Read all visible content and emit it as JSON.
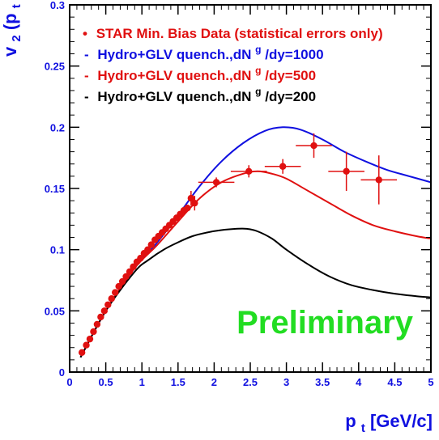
{
  "chart_data": {
    "type": "line",
    "title": "",
    "xlabel": {
      "main": "p",
      "sub": "t",
      "rest": " [GeV/c]"
    },
    "ylabel": {
      "main": "v",
      "sub": "2",
      "mid": "(p",
      "sub2": "t",
      "end": ")"
    },
    "xlim": [
      0,
      5
    ],
    "ylim": [
      0,
      0.3
    ],
    "x_ticks": [
      "0",
      "0.5",
      "1",
      "1.5",
      "2",
      "2.5",
      "3",
      "3.5",
      "4",
      "4.5",
      "5"
    ],
    "y_ticks": [
      "0",
      "0.05",
      "0.1",
      "0.15",
      "0.2",
      "0.25",
      "0.3"
    ],
    "watermark": "Preliminary",
    "colors": {
      "blue": "#1010e0",
      "red": "#e01010",
      "black": "#000000",
      "green": "#22dd22"
    },
    "legend": [
      {
        "marker": "•",
        "text": "STAR Min. Bias Data (statistical errors only)",
        "color": "#e01010"
      },
      {
        "marker": "-",
        "pre": "Hydro+GLV quench.,dN",
        "sup": "g",
        "post": "/dy=1000",
        "color": "#1010e0"
      },
      {
        "marker": "-",
        "pre": "Hydro+GLV quench.,dN",
        "sup": "g",
        "post": "/dy=500",
        "color": "#e01010"
      },
      {
        "marker": "-",
        "pre": "Hydro+GLV quench.,dN",
        "sup": "g",
        "post": "/dy=200",
        "color": "#000000"
      }
    ],
    "series": [
      {
        "name": "Hydro+GLV quench.,dN g/dy=1000",
        "color": "#1010e0",
        "x": [
          0.15,
          0.5,
          0.9,
          1.2,
          1.5,
          1.8,
          2.1,
          2.4,
          2.7,
          2.95,
          3.2,
          3.5,
          3.8,
          4.1,
          4.4,
          4.7,
          5.0
        ],
        "y": [
          0.012,
          0.05,
          0.085,
          0.105,
          0.128,
          0.152,
          0.172,
          0.187,
          0.197,
          0.2,
          0.198,
          0.19,
          0.18,
          0.172,
          0.165,
          0.16,
          0.155
        ]
      },
      {
        "name": "Hydro+GLV quench.,dN g/dy=500",
        "color": "#e01010",
        "x": [
          0.15,
          0.5,
          0.9,
          1.2,
          1.5,
          1.8,
          2.1,
          2.4,
          2.6,
          2.8,
          3.0,
          3.3,
          3.6,
          3.9,
          4.2,
          4.5,
          4.8,
          5.0
        ],
        "y": [
          0.012,
          0.05,
          0.085,
          0.103,
          0.123,
          0.142,
          0.155,
          0.162,
          0.164,
          0.162,
          0.158,
          0.148,
          0.138,
          0.128,
          0.12,
          0.115,
          0.111,
          0.109
        ]
      },
      {
        "name": "Hydro+GLV quench.,dN g/dy=200",
        "color": "#000000",
        "x": [
          0.15,
          0.5,
          0.9,
          1.1,
          1.3,
          1.5,
          1.7,
          1.9,
          2.1,
          2.3,
          2.45,
          2.6,
          2.8,
          3.0,
          3.3,
          3.6,
          3.9,
          4.2,
          4.5,
          4.8,
          5.0
        ],
        "y": [
          0.012,
          0.05,
          0.082,
          0.092,
          0.1,
          0.106,
          0.111,
          0.114,
          0.116,
          0.117,
          0.117,
          0.115,
          0.109,
          0.1,
          0.088,
          0.078,
          0.071,
          0.067,
          0.064,
          0.062,
          0.061
        ]
      }
    ],
    "data": {
      "name": "STAR Min. Bias Data (statistical errors only)",
      "color": "#e01010",
      "x": [
        0.17,
        0.23,
        0.28,
        0.33,
        0.38,
        0.43,
        0.48,
        0.53,
        0.58,
        0.63,
        0.68,
        0.73,
        0.78,
        0.83,
        0.88,
        0.93,
        0.98,
        1.03,
        1.08,
        1.13,
        1.18,
        1.23,
        1.28,
        1.33,
        1.38,
        1.43,
        1.48,
        1.53,
        1.58,
        1.63,
        1.68,
        1.73,
        2.03,
        2.48,
        2.95,
        3.38,
        3.83,
        4.28
      ],
      "y": [
        0.016,
        0.022,
        0.027,
        0.033,
        0.039,
        0.045,
        0.05,
        0.055,
        0.06,
        0.065,
        0.07,
        0.074,
        0.078,
        0.082,
        0.086,
        0.09,
        0.093,
        0.097,
        0.1,
        0.104,
        0.108,
        0.111,
        0.114,
        0.117,
        0.12,
        0.123,
        0.126,
        0.129,
        0.132,
        0.134,
        0.142,
        0.138,
        0.155,
        0.164,
        0.168,
        0.185,
        0.164,
        0.157
      ],
      "xerr": [
        0,
        0,
        0,
        0,
        0,
        0,
        0,
        0,
        0,
        0,
        0,
        0,
        0,
        0,
        0,
        0,
        0,
        0,
        0,
        0,
        0,
        0,
        0,
        0,
        0,
        0,
        0,
        0,
        0,
        0,
        0,
        0,
        0.25,
        0.25,
        0.25,
        0.25,
        0.25,
        0.25
      ],
      "yerr": [
        0,
        0,
        0,
        0,
        0,
        0,
        0,
        0,
        0,
        0,
        0,
        0,
        0,
        0,
        0,
        0,
        0,
        0,
        0,
        0,
        0,
        0,
        0,
        0,
        0,
        0,
        0,
        0,
        0,
        0,
        0.006,
        0.006,
        0.004,
        0.005,
        0.006,
        0.01,
        0.016,
        0.02
      ]
    }
  }
}
